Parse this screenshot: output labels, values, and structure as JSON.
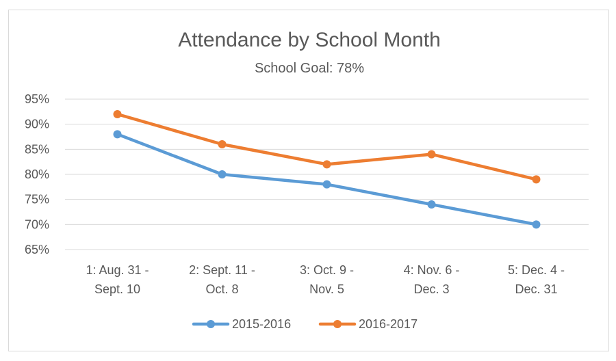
{
  "chart_data": {
    "type": "line",
    "title": "Attendance by School Month",
    "subtitle": "School Goal: 78%",
    "categories": [
      [
        "1: Aug. 31 -",
        "Sept. 10"
      ],
      [
        "2: Sept. 11 -",
        "Oct. 8"
      ],
      [
        "3: Oct. 9 -",
        "Nov. 5"
      ],
      [
        "4: Nov. 6 -",
        "Dec. 3"
      ],
      [
        "5: Dec. 4 -",
        "Dec. 31"
      ]
    ],
    "series": [
      {
        "name": "2015-2016",
        "color": "#5b9bd5",
        "values": [
          88,
          80,
          78,
          74,
          70
        ]
      },
      {
        "name": "2016-2017",
        "color": "#ed7d31",
        "values": [
          92,
          86,
          82,
          84,
          79
        ]
      }
    ],
    "yticks": [
      "65%",
      "70%",
      "75%",
      "80%",
      "85%",
      "90%",
      "95%"
    ],
    "ylim": [
      65,
      95
    ],
    "ystep": 5,
    "grid": true,
    "gridColor": "#d9d9d9",
    "legend": "bottom"
  }
}
